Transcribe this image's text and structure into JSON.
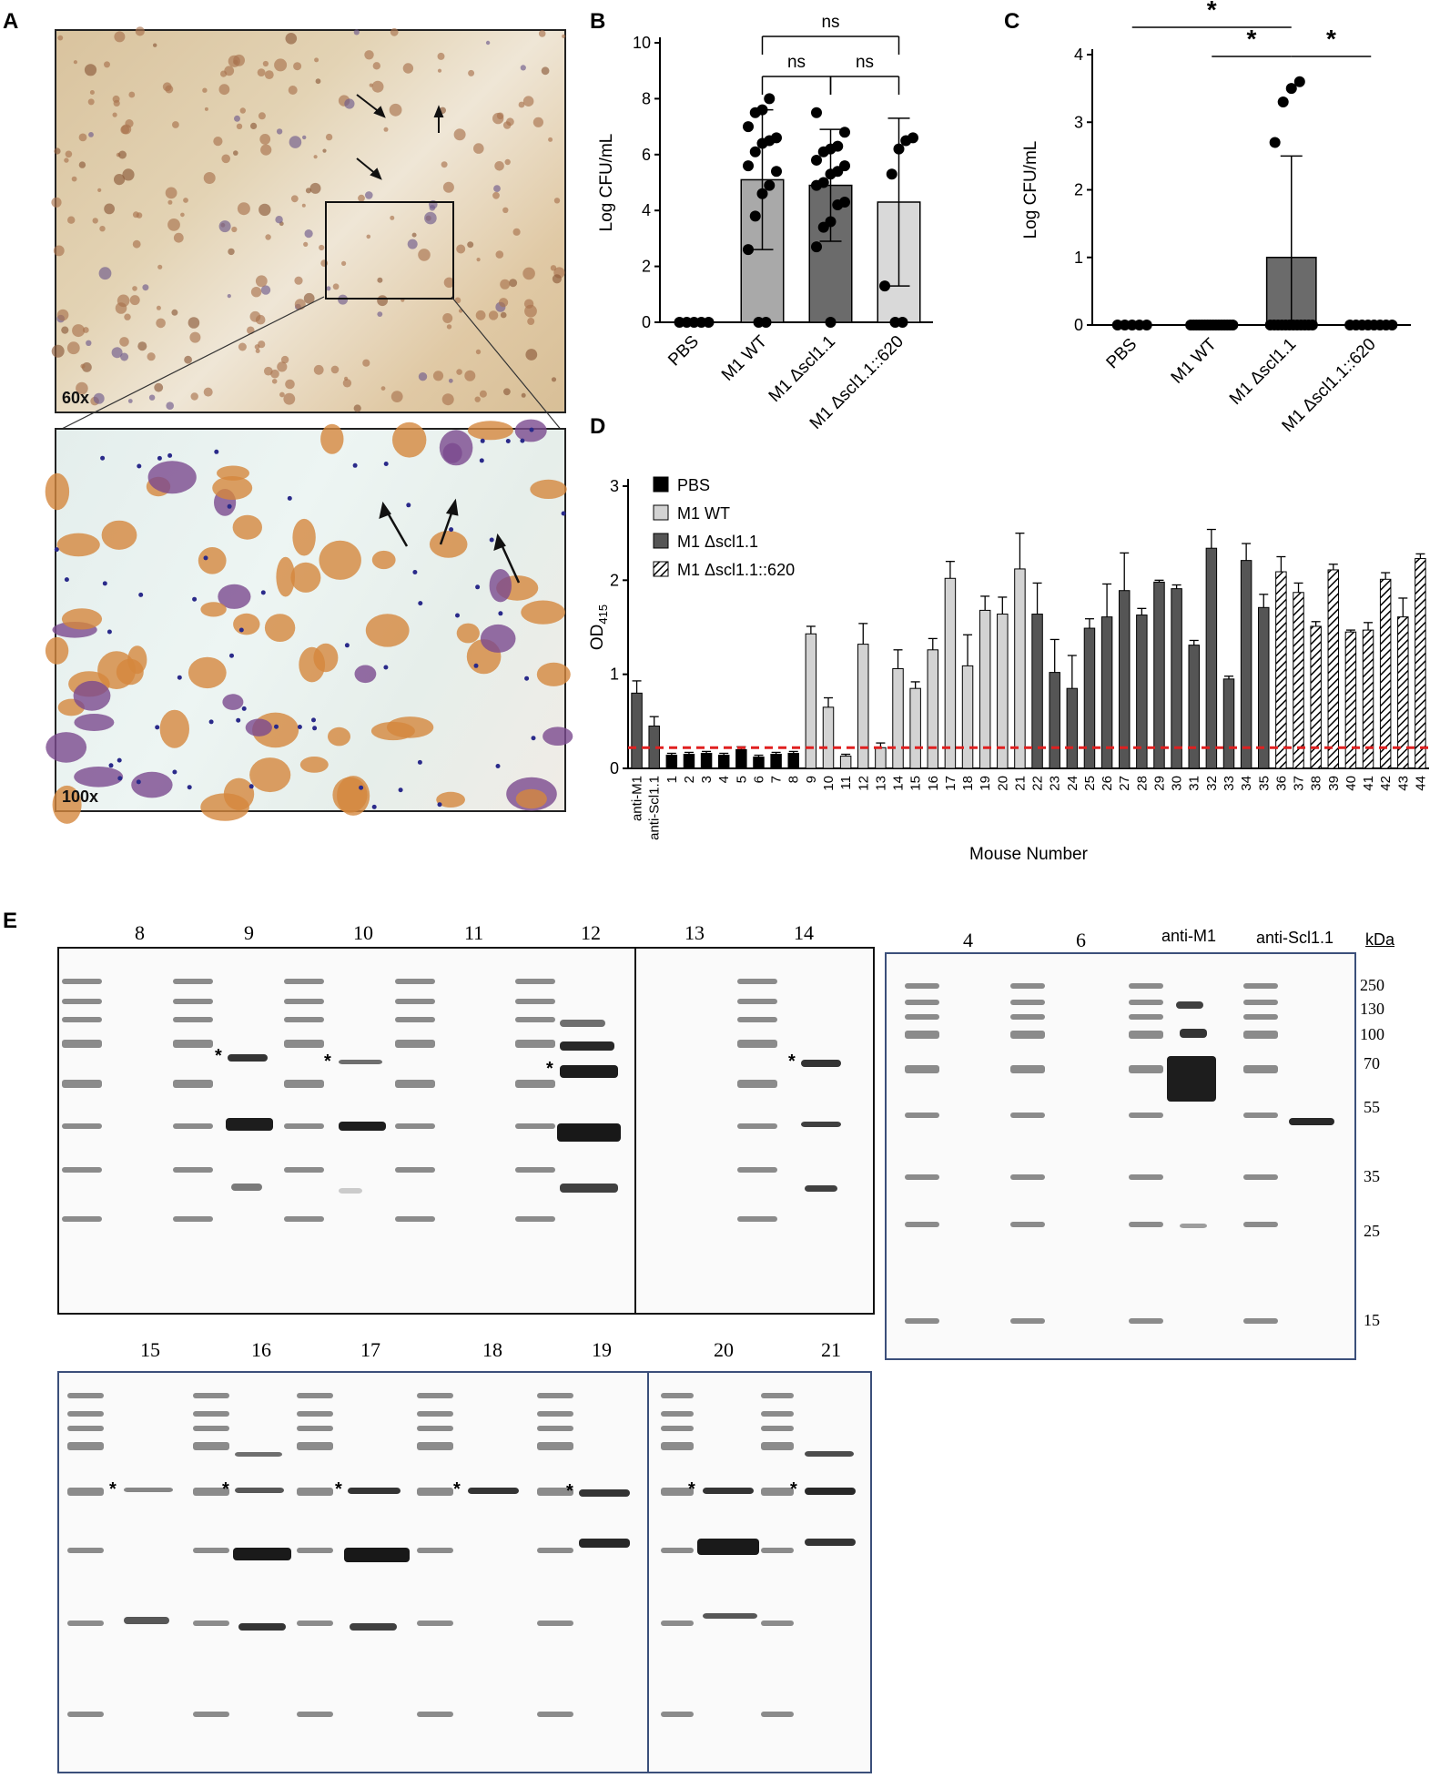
{
  "panels": {
    "A": "A",
    "B": "B",
    "C": "C",
    "D": "D",
    "E": "E"
  },
  "panel_a": {
    "top_mag": "60x",
    "bottom_mag": "100x"
  },
  "chart_data": [
    {
      "panel": "B",
      "type": "bar",
      "categories": [
        "PBS",
        "M1 WT",
        "M1 Δscl1.1",
        "M1 Δscl1.1::620"
      ],
      "values": [
        0,
        5.1,
        4.9,
        4.3
      ],
      "errors": [
        0,
        2.5,
        2.0,
        3.0
      ],
      "bar_colors": [
        "#ffffff",
        "#a9a9a9",
        "#6b6b6b",
        "#d9d9d9"
      ],
      "points": [
        [
          0,
          0,
          0,
          0,
          0
        ],
        [
          0,
          0,
          2.6,
          3.8,
          4.6,
          4.9,
          5.4,
          5.6,
          6.1,
          6.4,
          6.5,
          6.6,
          7.0,
          7.5,
          7.6,
          8.0
        ],
        [
          0,
          2.7,
          3.4,
          3.6,
          4.2,
          4.3,
          4.9,
          5.0,
          5.3,
          5.4,
          5.6,
          5.8,
          6.1,
          6.2,
          6.3,
          6.8,
          7.5
        ],
        [
          0,
          0,
          1.3,
          5.3,
          6.2,
          6.5,
          6.6
        ]
      ],
      "ylabel": "Log CFU/mL",
      "yticks": [
        0,
        2,
        4,
        6,
        8,
        10
      ],
      "ylim": [
        0,
        10
      ],
      "significance": [
        {
          "a": 1,
          "b": 3,
          "label": "ns"
        },
        {
          "a": 1,
          "b": 2,
          "label": "ns"
        },
        {
          "a": 2,
          "b": 3,
          "label": "ns"
        }
      ]
    },
    {
      "panel": "C",
      "type": "bar",
      "categories": [
        "PBS",
        "M1 WT",
        "M1 Δscl1.1",
        "M1 Δscl1.1::620"
      ],
      "values": [
        0,
        0,
        1.0,
        0
      ],
      "errors": [
        0,
        0,
        1.5,
        0
      ],
      "bar_colors": [
        "#ffffff",
        "#a9a9a9",
        "#6b6b6b",
        "#d9d9d9"
      ],
      "points": [
        [
          0,
          0,
          0,
          0,
          0
        ],
        [
          0,
          0,
          0,
          0,
          0,
          0,
          0,
          0,
          0,
          0,
          0,
          0,
          0,
          0,
          0,
          0
        ],
        [
          0,
          0,
          0,
          0,
          0,
          0,
          0,
          0,
          0,
          0,
          0,
          0,
          2.7,
          3.3,
          3.5,
          3.6
        ],
        [
          0,
          0,
          0,
          0,
          0,
          0,
          0,
          0
        ]
      ],
      "ylabel": "Log CFU/mL",
      "yticks": [
        0,
        1,
        2,
        3,
        4
      ],
      "ylim": [
        0,
        4
      ],
      "significance": [
        {
          "a": 0,
          "b": 2,
          "label": "*"
        },
        {
          "a": 1,
          "b": 2,
          "label": "*"
        },
        {
          "a": 2,
          "b": 3,
          "label": "*"
        }
      ]
    },
    {
      "panel": "D",
      "type": "bar",
      "categories": [
        "anti-M1",
        "anti-Scl1.1",
        "1",
        "2",
        "3",
        "4",
        "5",
        "6",
        "7",
        "8",
        "9",
        "10",
        "11",
        "12",
        "13",
        "14",
        "15",
        "16",
        "17",
        "18",
        "19",
        "20",
        "21",
        "22",
        "23",
        "24",
        "25",
        "26",
        "27",
        "28",
        "29",
        "30",
        "31",
        "32",
        "33",
        "34",
        "35",
        "36",
        "37",
        "38",
        "39",
        "40",
        "41",
        "42",
        "43",
        "44"
      ],
      "values": [
        0.8,
        0.45,
        0.14,
        0.15,
        0.16,
        0.14,
        0.2,
        0.12,
        0.15,
        0.16,
        1.43,
        0.65,
        0.13,
        1.32,
        0.22,
        1.06,
        0.85,
        1.26,
        2.02,
        1.09,
        1.68,
        1.64,
        2.12,
        1.64,
        1.02,
        0.85,
        1.49,
        1.61,
        1.89,
        1.63,
        1.98,
        1.91,
        1.31,
        2.34,
        0.95,
        2.21,
        1.71,
        2.09,
        1.87,
        1.51,
        2.11,
        1.45,
        1.47,
        2.01,
        1.61,
        2.23
      ],
      "errors": [
        0.13,
        0.1,
        0.02,
        0.02,
        0.02,
        0.02,
        0.03,
        0.02,
        0.02,
        0.02,
        0.08,
        0.1,
        0.02,
        0.22,
        0.05,
        0.2,
        0.07,
        0.12,
        0.18,
        0.33,
        0.15,
        0.18,
        0.38,
        0.33,
        0.35,
        0.35,
        0.1,
        0.35,
        0.4,
        0.07,
        0.02,
        0.04,
        0.05,
        0.2,
        0.03,
        0.18,
        0.14,
        0.16,
        0.1,
        0.05,
        0.06,
        0.02,
        0.08,
        0.07,
        0.2,
        0.05
      ],
      "groups": [
        "M1",
        "M1",
        "PBS",
        "PBS",
        "PBS",
        "PBS",
        "PBS",
        "PBS",
        "PBS",
        "PBS",
        "WT",
        "WT",
        "WT",
        "WT",
        "WT",
        "WT",
        "WT",
        "WT",
        "WT",
        "WT",
        "WT",
        "WT",
        "WT",
        "DEL",
        "DEL",
        "DEL",
        "DEL",
        "DEL",
        "DEL",
        "DEL",
        "DEL",
        "DEL",
        "DEL",
        "DEL",
        "DEL",
        "DEL",
        "DEL",
        "CMP",
        "CMP",
        "CMP",
        "CMP",
        "CMP",
        "CMP",
        "CMP",
        "CMP",
        "CMP"
      ],
      "legend": [
        {
          "key": "PBS",
          "name": "PBS"
        },
        {
          "key": "WT",
          "name": "M1 WT"
        },
        {
          "key": "DEL",
          "name": "M1 Δscl1.1"
        },
        {
          "key": "CMP",
          "name": "M1 Δscl1.1::620"
        }
      ],
      "colors": {
        "PBS": "#000000",
        "WT": "#d3d3d3",
        "DEL": "#555555",
        "CMP": "hatch",
        "M1": "#555555"
      },
      "ylabel": "OD",
      "ylabel_sub": "415",
      "xlabel": "Mouse Number",
      "yticks": [
        0,
        1,
        2,
        3
      ],
      "ylim": [
        0,
        3
      ],
      "threshold": 0.22,
      "threshold_color": "#e02020"
    }
  ],
  "blot_labels": {
    "top_left": [
      "8",
      "9",
      "10",
      "11",
      "12",
      "13",
      "14"
    ],
    "right": [
      "4",
      "6",
      "anti-M1",
      "anti-Scl1.1"
    ],
    "kda_title": "kDa",
    "kda": [
      "250",
      "130",
      "100",
      "70",
      "55",
      "35",
      "25",
      "15"
    ],
    "bottom": [
      "15",
      "16",
      "17",
      "18",
      "19",
      "20",
      "21"
    ],
    "star": "*"
  }
}
